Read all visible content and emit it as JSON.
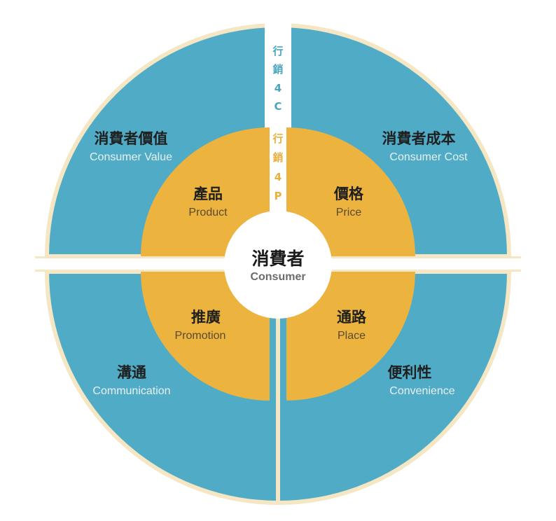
{
  "colors": {
    "outer_ring": "#50acc6",
    "inner_ring": "#ecb33f",
    "border": "#f5e6c4",
    "center": "#ffffff",
    "label_4c": "#4aa6bf",
    "label_4p": "#e8b13f"
  },
  "center": {
    "label_zh": "消費者",
    "label_en": "Consumer"
  },
  "band_4c": {
    "chars": [
      "行",
      "銷",
      "4",
      "C"
    ]
  },
  "band_4p": {
    "chars": [
      "行",
      "銷",
      "4",
      "P"
    ]
  },
  "quadrants": {
    "top_left": {
      "outer_zh": "消費者價值",
      "outer_en": "Consumer Value",
      "inner_zh": "產品",
      "inner_en": "Product"
    },
    "top_right": {
      "outer_zh": "消費者成本",
      "outer_en": "Consumer Cost",
      "inner_zh": "價格",
      "inner_en": "Price"
    },
    "bottom_left": {
      "outer_zh": "溝通",
      "outer_en": "Communication",
      "inner_zh": "推廣",
      "inner_en": "Promotion"
    },
    "bottom_right": {
      "outer_zh": "便利性",
      "outer_en": "Convenience",
      "inner_zh": "通路",
      "inner_en": "Place"
    }
  }
}
